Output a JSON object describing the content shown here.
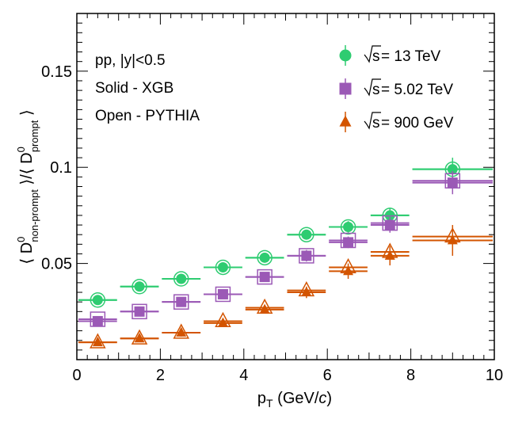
{
  "chart_data": {
    "type": "scatter",
    "title": "",
    "xlabel": "p",
    "xlabel_sub": "T",
    "xlabel_unit_pre": " (GeV/",
    "xlabel_unit_c": "c",
    "xlabel_unit_post": ")",
    "ylabel_open": "⟨ D",
    "ylabel_num_sup": "0",
    "ylabel_num_sub": "non-prompt",
    "ylabel_mid": " ⟩/⟨ D",
    "ylabel_den_sup": "0",
    "ylabel_den_sub": "prompt",
    "ylabel_close": " ⟩",
    "xlim": [
      0,
      10
    ],
    "ylim": [
      0,
      0.18
    ],
    "x_ticks": [
      0,
      2,
      4,
      6,
      8,
      10
    ],
    "x_tick_labels": [
      "0",
      "2",
      "4",
      "6",
      "8",
      "10"
    ],
    "y_ticks": [
      0.05,
      0.1,
      0.15
    ],
    "y_tick_labels": [
      "0.05",
      "0.1",
      "0.15"
    ],
    "annotations": [
      "pp, |y|<0.5",
      "Solid - XGB",
      "Open - PYTHIA"
    ],
    "legend_position": "top-right",
    "x_bins": [
      [
        0,
        1
      ],
      [
        1,
        2
      ],
      [
        2,
        3
      ],
      [
        3,
        4
      ],
      [
        4,
        5
      ],
      [
        5,
        6
      ],
      [
        6,
        7
      ],
      [
        7,
        8
      ],
      [
        8,
        10
      ]
    ],
    "x_centers": [
      0.5,
      1.5,
      2.5,
      3.5,
      4.5,
      5.5,
      6.5,
      7.5,
      9.0
    ],
    "series": [
      {
        "name": "13 TeV",
        "legend_prefix": "s",
        "legend_text": " = 13 TeV",
        "marker": "circle",
        "color": "#2ecc71",
        "values": [
          0.031,
          0.038,
          0.042,
          0.048,
          0.053,
          0.065,
          0.069,
          0.075,
          0.099
        ],
        "errors": [
          0.002,
          0.002,
          0.002,
          0.002,
          0.002,
          0.002,
          0.003,
          0.004,
          0.006
        ],
        "pythia": [
          0.031,
          0.038,
          0.042,
          0.048,
          0.053,
          0.065,
          0.069,
          0.075,
          0.099
        ]
      },
      {
        "name": "5.02 TeV",
        "legend_prefix": "s",
        "legend_text": " = 5.02 TeV",
        "marker": "square",
        "color": "#9b59b6",
        "values": [
          0.02,
          0.025,
          0.03,
          0.034,
          0.043,
          0.054,
          0.061,
          0.07,
          0.092
        ],
        "errors": [
          0.002,
          0.002,
          0.002,
          0.002,
          0.002,
          0.003,
          0.003,
          0.004,
          0.006
        ],
        "pythia": [
          0.021,
          0.025,
          0.03,
          0.034,
          0.043,
          0.054,
          0.062,
          0.071,
          0.093
        ]
      },
      {
        "name": "900 GeV",
        "legend_prefix": "s",
        "legend_text": " = 900 GeV",
        "marker": "triangle",
        "color": "#d35400",
        "values": [
          0.009,
          0.011,
          0.014,
          0.019,
          0.026,
          0.035,
          0.046,
          0.054,
          0.062
        ],
        "errors": [
          0.001,
          0.001,
          0.002,
          0.002,
          0.002,
          0.003,
          0.004,
          0.005,
          0.008
        ],
        "pythia": [
          0.009,
          0.011,
          0.014,
          0.02,
          0.027,
          0.036,
          0.048,
          0.056,
          0.064
        ]
      }
    ]
  }
}
